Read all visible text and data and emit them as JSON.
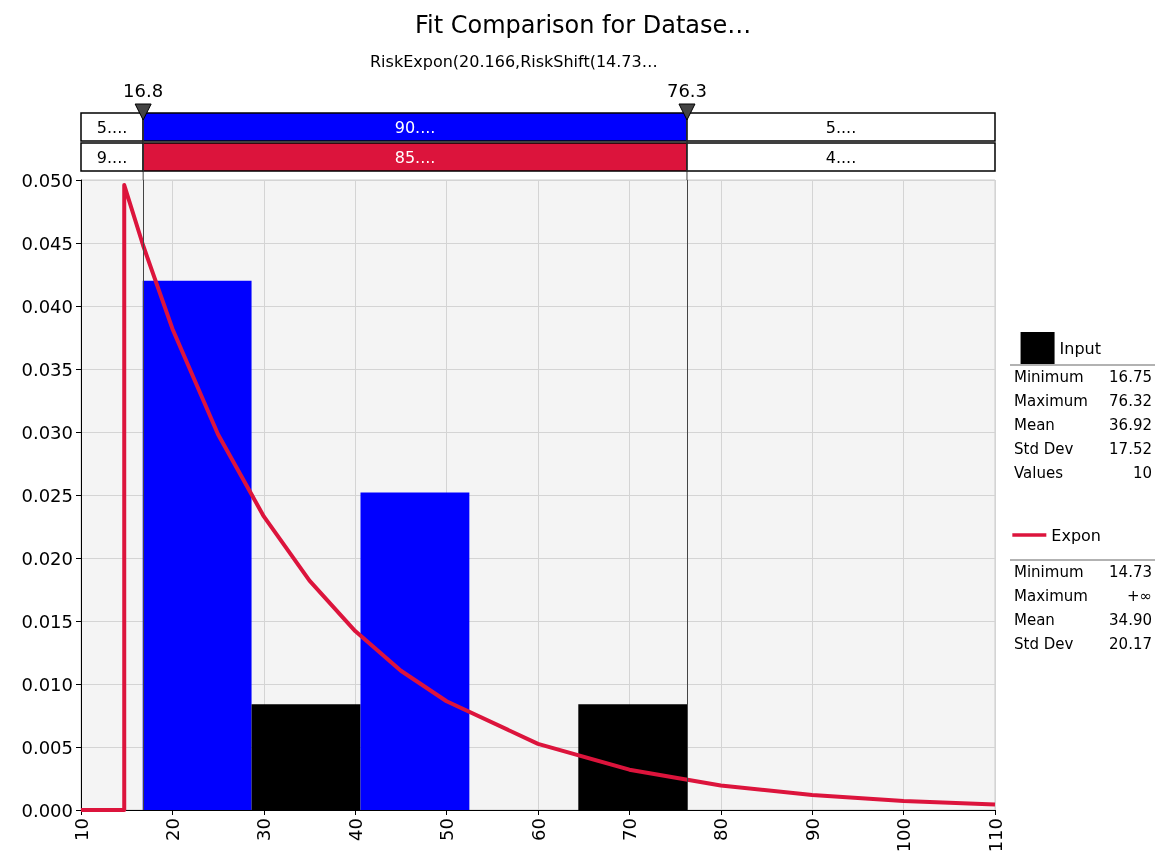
{
  "chart_data": {
    "type": "histogram",
    "title": "Fit Comparison for Datase…",
    "subtitle": "RiskExpon(20.166,RiskShift(14.73…",
    "series": [
      {
        "name": "Input",
        "color": "#000000",
        "colors": [
          "#0000ff",
          "#000000",
          "#0000ff",
          "#000000",
          "#000000"
        ],
        "bins": [
          16.75,
          28.66,
          40.58,
          52.49,
          64.41,
          76.32
        ],
        "values": [
          0.042,
          0.0084,
          0.0252,
          0,
          0.0084
        ]
      },
      {
        "name": "Expon",
        "type": "line",
        "color": "#dc143c",
        "x": [
          10,
          14.73,
          14.73,
          16.8,
          20,
          25,
          30,
          35,
          40,
          45,
          50,
          60,
          70,
          80,
          90,
          100,
          110
        ],
        "values": [
          0,
          0,
          0.0496,
          0.0448,
          0.0382,
          0.0298,
          0.0233,
          0.0182,
          0.0142,
          0.01105,
          0.00863,
          0.00525,
          0.0032,
          0.00195,
          0.00119,
          0.00072,
          0.00044
        ]
      }
    ],
    "xlim": [
      10,
      110
    ],
    "xticks": [
      10,
      20,
      30,
      40,
      50,
      60,
      70,
      80,
      90,
      100,
      110
    ],
    "ylim": [
      0,
      0.05
    ],
    "yticks": [
      {
        "value": 0,
        "label": "0.000"
      },
      {
        "value": 0.005,
        "label": "0.005"
      },
      {
        "value": 0.01,
        "label": "0.010"
      },
      {
        "value": 0.015,
        "label": "0.015"
      },
      {
        "value": 0.02,
        "label": "0.020"
      },
      {
        "value": 0.025,
        "label": "0.025"
      },
      {
        "value": 0.03,
        "label": "0.030"
      },
      {
        "value": 0.035,
        "label": "0.035"
      },
      {
        "value": 0.04,
        "label": "0.040"
      },
      {
        "value": 0.045,
        "label": "0.045"
      },
      {
        "value": 0.05,
        "label": "0.050"
      }
    ],
    "ref_lines": [
      {
        "axis": "x",
        "value": 16.8,
        "label": "16.8"
      },
      {
        "axis": "x",
        "value": 76.3,
        "label": "76.3"
      }
    ],
    "annotations": [
      "5....",
      "90....",
      "5....",
      "9....",
      "85....",
      "4....",
      "Minimum 16.75",
      "Maximum 76.32",
      "Mean 36.92",
      "Std Dev 17.52",
      "Values 10",
      "Minimum 14.73",
      "Maximum +∞",
      "Mean 34.90",
      "Std Dev 20.17"
    ],
    "grid": true,
    "legend": "right"
  }
}
